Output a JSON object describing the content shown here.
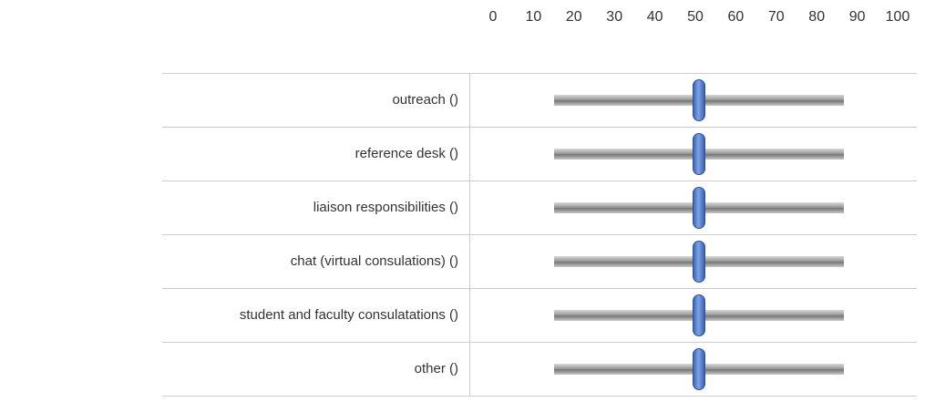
{
  "scale": [
    0,
    10,
    20,
    30,
    40,
    50,
    60,
    70,
    80,
    90,
    100
  ],
  "rows": [
    {
      "label": "outreach ()",
      "value": 50
    },
    {
      "label": "reference desk ()",
      "value": 50
    },
    {
      "label": "liaison responsibilities ()",
      "value": 50
    },
    {
      "label": "chat (virtual consulations) ()",
      "value": 50
    },
    {
      "label": "student and faculty consulatations ()",
      "value": 50
    },
    {
      "label": "other ()",
      "value": 50
    }
  ]
}
